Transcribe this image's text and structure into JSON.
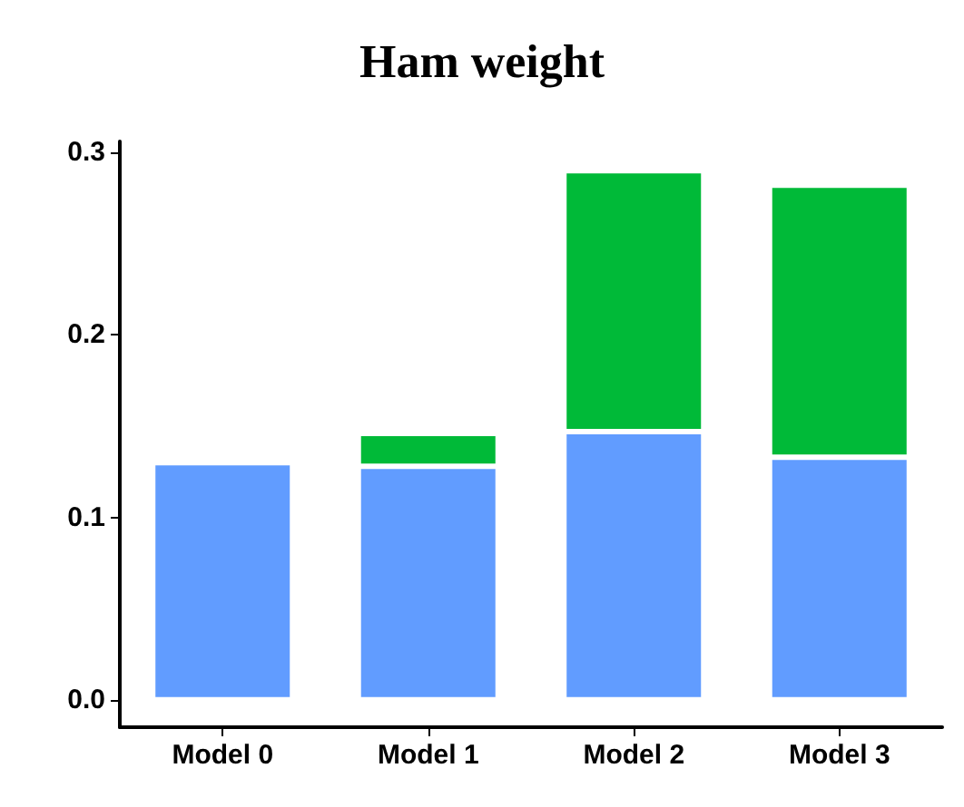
{
  "chart_data": {
    "type": "bar",
    "title": "Ham weight",
    "stacked": true,
    "categories": [
      "Model 0",
      "Model 1",
      "Model 2",
      "Model 3"
    ],
    "series": [
      {
        "color": "#619cff",
        "values": [
          0.13,
          0.128,
          0.147,
          0.133
        ]
      },
      {
        "color": "#00ba38",
        "values": [
          null,
          0.018,
          0.143,
          0.149
        ]
      }
    ],
    "ylim": [
      -0.015,
      0.306
    ],
    "yticks": [
      {
        "value": 0,
        "label": "0.0"
      },
      0.1,
      0.2,
      0.3
    ],
    "grid": false
  }
}
